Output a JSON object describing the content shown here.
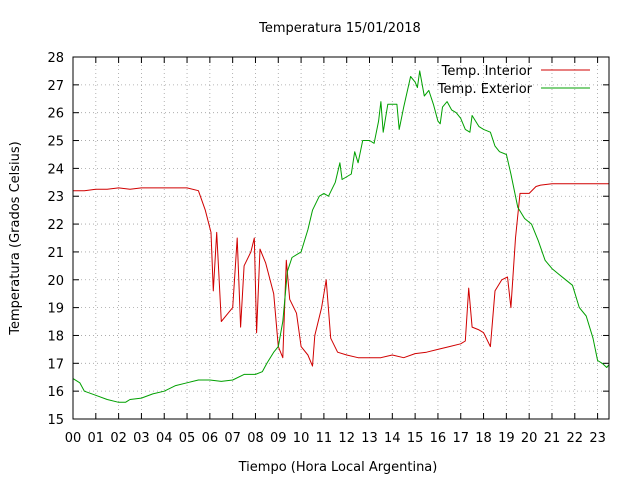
{
  "chart_data": {
    "type": "line",
    "title": "Temperatura 15/01/2018",
    "xlabel": "Tiempo (Hora Local Argentina)",
    "ylabel": "Temperatura (Grados Celsius)",
    "xlim": [
      0,
      23.5
    ],
    "ylim": [
      15,
      28
    ],
    "grid": true,
    "legend_position": "top-right",
    "x_ticks": [
      "00",
      "01",
      "02",
      "03",
      "04",
      "05",
      "06",
      "07",
      "08",
      "09",
      "10",
      "11",
      "12",
      "13",
      "14",
      "15",
      "16",
      "17",
      "18",
      "19",
      "20",
      "21",
      "22",
      "23"
    ],
    "y_ticks": [
      "15",
      "16",
      "17",
      "18",
      "19",
      "20",
      "21",
      "22",
      "23",
      "24",
      "25",
      "26",
      "27",
      "28"
    ],
    "series": [
      {
        "name": "Temp. Interior",
        "color": "#d00000",
        "points": [
          [
            0.0,
            23.2
          ],
          [
            0.5,
            23.2
          ],
          [
            1.0,
            23.25
          ],
          [
            1.5,
            23.25
          ],
          [
            2.0,
            23.3
          ],
          [
            2.5,
            23.25
          ],
          [
            3.0,
            23.3
          ],
          [
            3.5,
            23.3
          ],
          [
            4.0,
            23.3
          ],
          [
            4.5,
            23.3
          ],
          [
            5.0,
            23.3
          ],
          [
            5.5,
            23.2
          ],
          [
            5.8,
            22.5
          ],
          [
            6.05,
            21.7
          ],
          [
            6.15,
            19.6
          ],
          [
            6.3,
            21.7
          ],
          [
            6.5,
            18.5
          ],
          [
            6.8,
            18.8
          ],
          [
            7.0,
            19.0
          ],
          [
            7.2,
            21.5
          ],
          [
            7.35,
            18.3
          ],
          [
            7.5,
            20.5
          ],
          [
            7.8,
            21.0
          ],
          [
            7.95,
            21.5
          ],
          [
            8.05,
            18.1
          ],
          [
            8.2,
            21.1
          ],
          [
            8.45,
            20.6
          ],
          [
            8.8,
            19.5
          ],
          [
            9.0,
            17.6
          ],
          [
            9.2,
            17.2
          ],
          [
            9.35,
            20.7
          ],
          [
            9.5,
            19.3
          ],
          [
            9.8,
            18.8
          ],
          [
            10.0,
            17.6
          ],
          [
            10.3,
            17.3
          ],
          [
            10.5,
            16.9
          ],
          [
            10.6,
            18.0
          ],
          [
            10.9,
            19.0
          ],
          [
            11.1,
            20.0
          ],
          [
            11.3,
            17.9
          ],
          [
            11.6,
            17.4
          ],
          [
            12.0,
            17.3
          ],
          [
            12.5,
            17.2
          ],
          [
            13.0,
            17.2
          ],
          [
            13.5,
            17.2
          ],
          [
            14.0,
            17.3
          ],
          [
            14.5,
            17.2
          ],
          [
            15.0,
            17.35
          ],
          [
            15.5,
            17.4
          ],
          [
            16.0,
            17.5
          ],
          [
            16.5,
            17.6
          ],
          [
            17.0,
            17.7
          ],
          [
            17.2,
            17.8
          ],
          [
            17.35,
            19.7
          ],
          [
            17.5,
            18.3
          ],
          [
            17.8,
            18.2
          ],
          [
            18.0,
            18.1
          ],
          [
            18.3,
            17.6
          ],
          [
            18.5,
            19.6
          ],
          [
            18.8,
            20.0
          ],
          [
            19.05,
            20.1
          ],
          [
            19.2,
            19.0
          ],
          [
            19.4,
            21.5
          ],
          [
            19.6,
            23.1
          ],
          [
            20.0,
            23.1
          ],
          [
            20.3,
            23.35
          ],
          [
            20.5,
            23.4
          ],
          [
            21.0,
            23.45
          ],
          [
            21.5,
            23.45
          ],
          [
            22.0,
            23.45
          ],
          [
            22.5,
            23.45
          ],
          [
            23.0,
            23.45
          ],
          [
            23.5,
            23.45
          ]
        ]
      },
      {
        "name": "Temp. Exterior",
        "color": "#00a000",
        "points": [
          [
            0.0,
            16.45
          ],
          [
            0.3,
            16.3
          ],
          [
            0.5,
            16.0
          ],
          [
            1.0,
            15.85
          ],
          [
            1.5,
            15.7
          ],
          [
            2.0,
            15.6
          ],
          [
            2.3,
            15.6
          ],
          [
            2.5,
            15.7
          ],
          [
            3.0,
            15.75
          ],
          [
            3.5,
            15.9
          ],
          [
            4.0,
            16.0
          ],
          [
            4.5,
            16.2
          ],
          [
            5.0,
            16.3
          ],
          [
            5.5,
            16.4
          ],
          [
            6.0,
            16.4
          ],
          [
            6.5,
            16.35
          ],
          [
            7.0,
            16.4
          ],
          [
            7.5,
            16.6
          ],
          [
            8.0,
            16.6
          ],
          [
            8.3,
            16.7
          ],
          [
            8.5,
            17.0
          ],
          [
            8.8,
            17.4
          ],
          [
            9.0,
            17.6
          ],
          [
            9.2,
            18.5
          ],
          [
            9.4,
            20.3
          ],
          [
            9.6,
            20.8
          ],
          [
            10.0,
            21.0
          ],
          [
            10.3,
            21.8
          ],
          [
            10.5,
            22.5
          ],
          [
            10.8,
            23.0
          ],
          [
            11.0,
            23.1
          ],
          [
            11.2,
            23.0
          ],
          [
            11.5,
            23.5
          ],
          [
            11.7,
            24.2
          ],
          [
            11.8,
            23.6
          ],
          [
            12.2,
            23.8
          ],
          [
            12.35,
            24.6
          ],
          [
            12.5,
            24.2
          ],
          [
            12.7,
            25.0
          ],
          [
            13.0,
            25.0
          ],
          [
            13.2,
            24.9
          ],
          [
            13.4,
            25.7
          ],
          [
            13.5,
            26.4
          ],
          [
            13.6,
            25.3
          ],
          [
            13.8,
            26.3
          ],
          [
            14.2,
            26.3
          ],
          [
            14.3,
            25.4
          ],
          [
            14.5,
            26.2
          ],
          [
            14.8,
            27.3
          ],
          [
            15.0,
            27.1
          ],
          [
            15.1,
            26.9
          ],
          [
            15.2,
            27.5
          ],
          [
            15.4,
            26.6
          ],
          [
            15.6,
            26.8
          ],
          [
            15.8,
            26.3
          ],
          [
            16.0,
            25.7
          ],
          [
            16.1,
            25.6
          ],
          [
            16.2,
            26.2
          ],
          [
            16.4,
            26.4
          ],
          [
            16.6,
            26.1
          ],
          [
            16.8,
            26.0
          ],
          [
            17.0,
            25.8
          ],
          [
            17.2,
            25.4
          ],
          [
            17.4,
            25.3
          ],
          [
            17.5,
            25.9
          ],
          [
            17.8,
            25.5
          ],
          [
            18.0,
            25.4
          ],
          [
            18.3,
            25.3
          ],
          [
            18.5,
            24.8
          ],
          [
            18.7,
            24.6
          ],
          [
            19.0,
            24.5
          ],
          [
            19.2,
            23.8
          ],
          [
            19.5,
            22.6
          ],
          [
            19.8,
            22.2
          ],
          [
            20.1,
            22.0
          ],
          [
            20.4,
            21.4
          ],
          [
            20.7,
            20.7
          ],
          [
            21.0,
            20.4
          ],
          [
            21.3,
            20.2
          ],
          [
            21.6,
            20.0
          ],
          [
            21.9,
            19.8
          ],
          [
            22.2,
            19.0
          ],
          [
            22.5,
            18.7
          ],
          [
            22.8,
            17.9
          ],
          [
            23.0,
            17.1
          ],
          [
            23.2,
            17.0
          ],
          [
            23.4,
            16.85
          ],
          [
            23.5,
            16.95
          ]
        ]
      }
    ]
  }
}
